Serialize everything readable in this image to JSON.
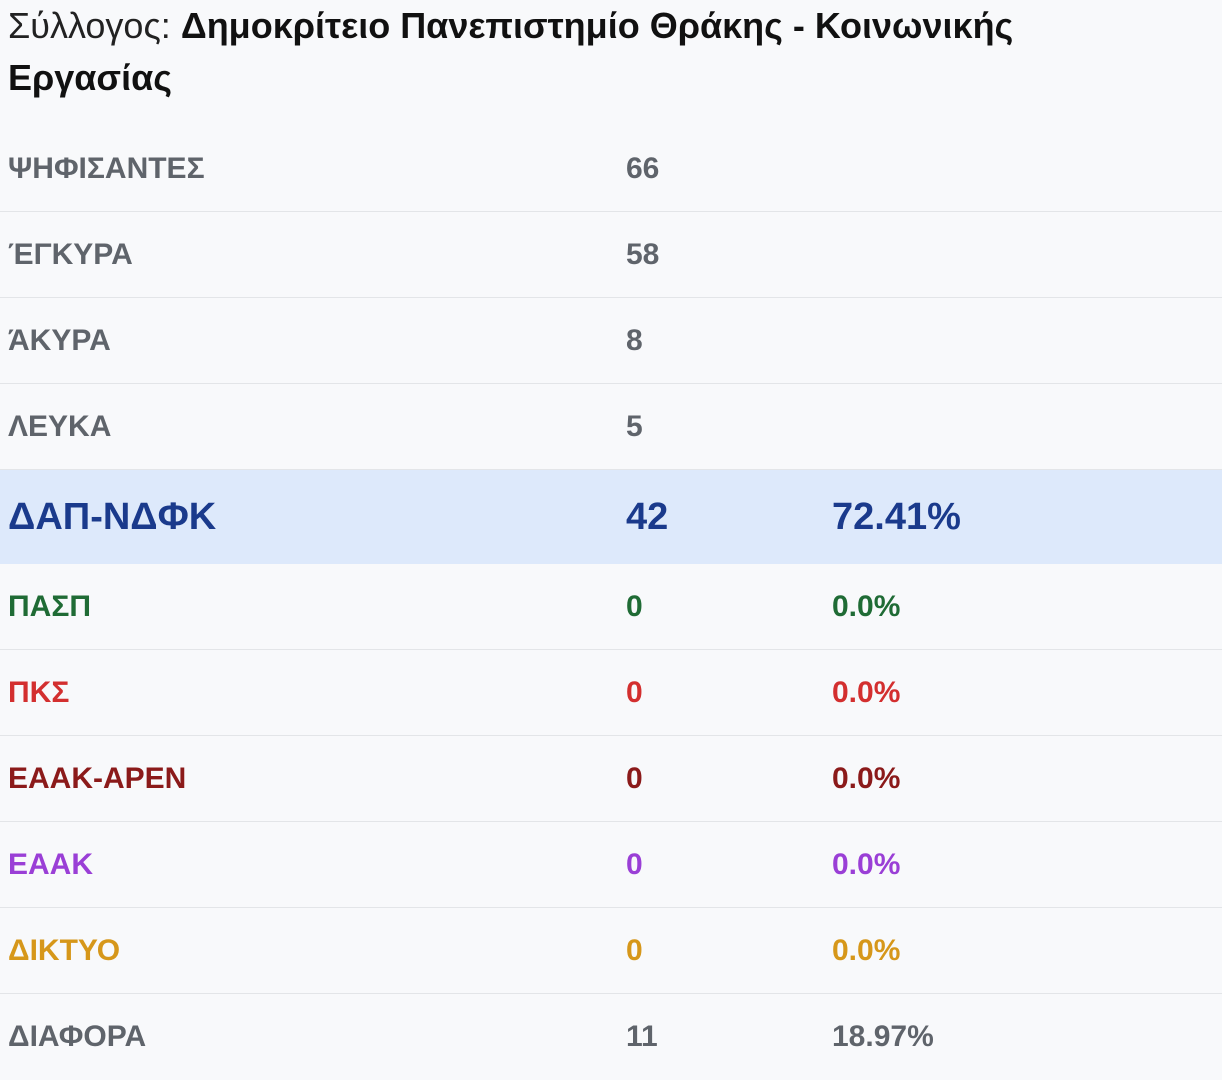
{
  "header": {
    "label": "Σύλλογος:",
    "name": "Δημοκρίτειο Πανεπιστημίο Θράκης - Κοινωνικής Εργασίας"
  },
  "stats": [
    {
      "label": "ΨΗΦΙΣΑΝΤΕΣ",
      "value": "66"
    },
    {
      "label": "ΈΓΚΥΡΑ",
      "value": "58"
    },
    {
      "label": "ΆΚΥΡΑ",
      "value": "8"
    },
    {
      "label": "ΛΕΥΚΑ",
      "value": "5"
    }
  ],
  "parties": [
    {
      "name": "ΔΑΠ-ΝΔΦΚ",
      "votes": "42",
      "percent": "72.41%",
      "color": "#1a3a8c"
    },
    {
      "name": "ΠΑΣΠ",
      "votes": "0",
      "percent": "0.0%",
      "color": "#1f6b35"
    },
    {
      "name": "ΠΚΣ",
      "votes": "0",
      "percent": "0.0%",
      "color": "#d32f2f"
    },
    {
      "name": "ΕΑΑΚ-ΑΡΕΝ",
      "votes": "0",
      "percent": "0.0%",
      "color": "#8b1a1a"
    },
    {
      "name": "ΕΑΑΚ",
      "votes": "0",
      "percent": "0.0%",
      "color": "#9a3fd6"
    },
    {
      "name": "ΔΙΚΤΥΟ",
      "votes": "0",
      "percent": "0.0%",
      "color": "#d6971a"
    },
    {
      "name": "ΔΙΑΦΟΡΑ",
      "votes": "11",
      "percent": "18.97%",
      "color": "#5f646b"
    }
  ]
}
